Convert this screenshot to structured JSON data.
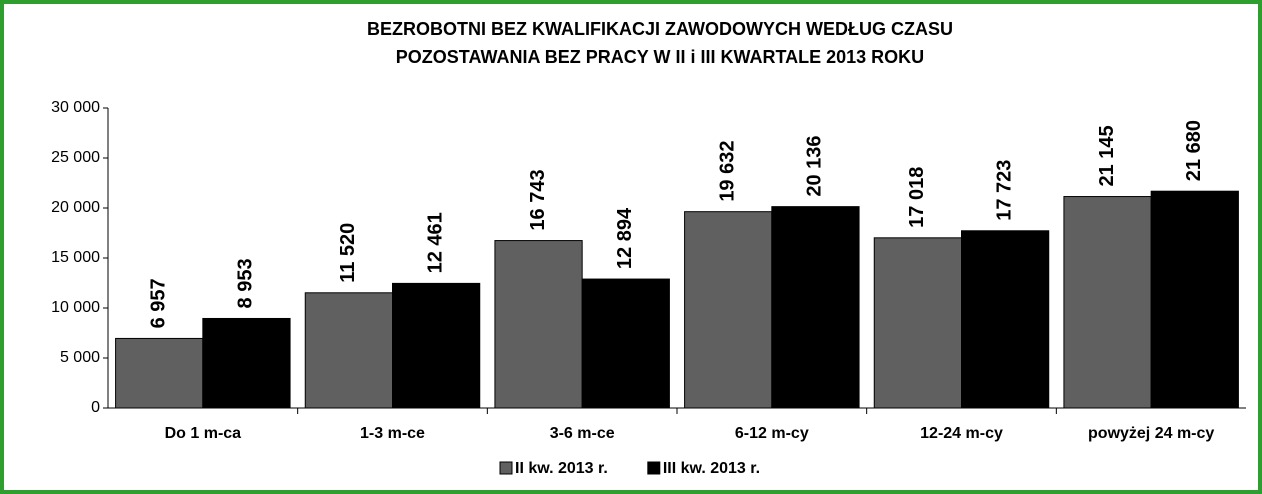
{
  "chart_data": {
    "type": "bar",
    "title": [
      "BEZROBOTNI BEZ KWALIFIKACJI ZAWODOWYCH WEDŁUG CZASU",
      "POZOSTAWANIA BEZ PRACY W II i III KWARTALE 2013 ROKU"
    ],
    "categories": [
      "Do 1 m-ca",
      "1-3 m-ce",
      "3-6 m-ce",
      "6-12 m-cy",
      "12-24 m-cy",
      "powyżej 24 m-cy"
    ],
    "series": [
      {
        "name": "II kw. 2013 r.",
        "color": "#606060",
        "values": [
          6957,
          11520,
          16743,
          19632,
          17018,
          21145
        ],
        "value_labels": [
          "6 957",
          "11 520",
          "16 743",
          "19 632",
          "17 018",
          "21 145"
        ]
      },
      {
        "name": "III kw. 2013 r.",
        "color": "#000000",
        "values": [
          8953,
          12461,
          12894,
          20136,
          17723,
          21680
        ],
        "value_labels": [
          "8 953",
          "12 461",
          "12 894",
          "20 136",
          "17 723",
          "21 680"
        ]
      }
    ],
    "ylim": [
      0,
      30000
    ],
    "yticks": [
      0,
      {
        "value": 5000,
        "label": "5 000"
      },
      {
        "value": 10000,
        "label": "10 000"
      },
      {
        "value": 15000,
        "label": "15 000"
      },
      {
        "value": 20000,
        "label": "20 000"
      },
      {
        "value": 25000,
        "label": "25 000"
      },
      {
        "value": 30000,
        "label": "30 000"
      }
    ],
    "grid": false,
    "legend": "bottom"
  }
}
